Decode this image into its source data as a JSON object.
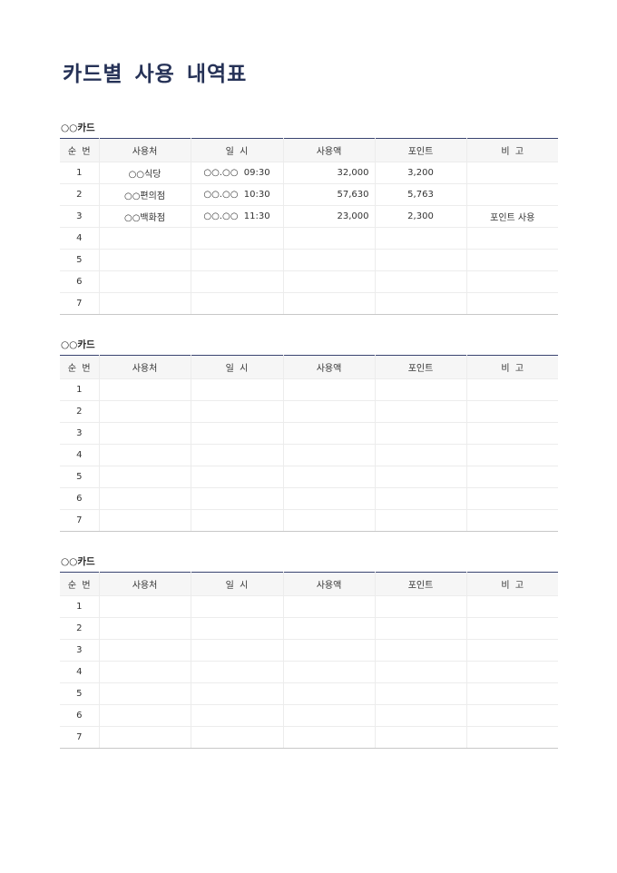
{
  "title": "카드별 사용 내역표",
  "columns": [
    "순  번",
    "사용처",
    "일  시",
    "사용액",
    "포인트",
    "비  고"
  ],
  "sections": [
    {
      "card": "○○카드",
      "rows": [
        [
          "1",
          "○○식당",
          "○○.○○  09:30",
          "32,000",
          "3,200",
          ""
        ],
        [
          "2",
          "○○편의점",
          "○○.○○  10:30",
          "57,630",
          "5,763",
          ""
        ],
        [
          "3",
          "○○백화점",
          "○○.○○  11:30",
          "23,000",
          "2,300",
          "포인트 사용"
        ],
        [
          "4",
          "",
          "",
          "",
          "",
          ""
        ],
        [
          "5",
          "",
          "",
          "",
          "",
          ""
        ],
        [
          "6",
          "",
          "",
          "",
          "",
          ""
        ],
        [
          "7",
          "",
          "",
          "",
          "",
          ""
        ]
      ]
    },
    {
      "card": "○○카드",
      "rows": [
        [
          "1",
          "",
          "",
          "",
          "",
          ""
        ],
        [
          "2",
          "",
          "",
          "",
          "",
          ""
        ],
        [
          "3",
          "",
          "",
          "",
          "",
          ""
        ],
        [
          "4",
          "",
          "",
          "",
          "",
          ""
        ],
        [
          "5",
          "",
          "",
          "",
          "",
          ""
        ],
        [
          "6",
          "",
          "",
          "",
          "",
          ""
        ],
        [
          "7",
          "",
          "",
          "",
          "",
          ""
        ]
      ]
    },
    {
      "card": "○○카드",
      "rows": [
        [
          "1",
          "",
          "",
          "",
          "",
          ""
        ],
        [
          "2",
          "",
          "",
          "",
          "",
          ""
        ],
        [
          "3",
          "",
          "",
          "",
          "",
          ""
        ],
        [
          "4",
          "",
          "",
          "",
          "",
          ""
        ],
        [
          "5",
          "",
          "",
          "",
          "",
          ""
        ],
        [
          "6",
          "",
          "",
          "",
          "",
          ""
        ],
        [
          "7",
          "",
          "",
          "",
          "",
          ""
        ]
      ]
    }
  ]
}
